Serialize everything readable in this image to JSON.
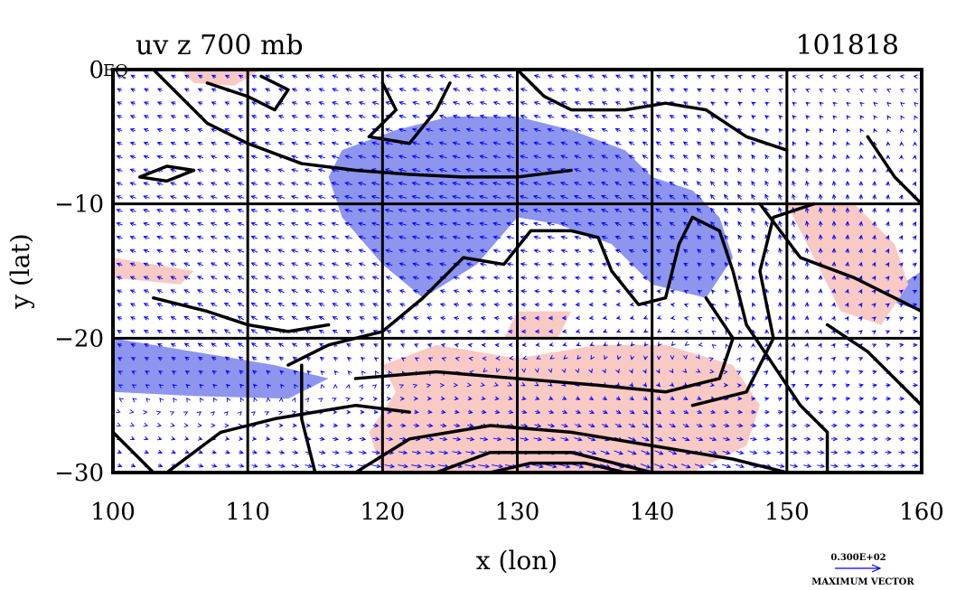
{
  "chart_data": {
    "type": "vector-contour-map",
    "title_left": "uv z 700 mb",
    "title_right": "101818",
    "xlabel": "x (lon)",
    "ylabel": "y (lat)",
    "xlim": [
      100,
      160
    ],
    "ylim": [
      -30,
      0
    ],
    "xticks": [
      "100",
      "110",
      "120",
      "130",
      "140",
      "150",
      "160"
    ],
    "yticks": [
      "0",
      "−10",
      "−20",
      "−30"
    ],
    "xtick_values": [
      100,
      110,
      120,
      130,
      140,
      150,
      160
    ],
    "ytick_values": [
      0,
      -10,
      -20,
      -30
    ],
    "corner_label": "EQ",
    "grid": true,
    "legend": {
      "value": "0.300E+02",
      "label": "MAXIMUM VECTOR"
    },
    "colors": {
      "positive": "#f9c9c4",
      "negative": "#8d95ef",
      "vector": "#0000ff",
      "contour": "#000000"
    },
    "shaded_regions": [
      {
        "sign": "negative",
        "points": [
          [
            117,
            -6
          ],
          [
            121,
            -4.5
          ],
          [
            125,
            -3.5
          ],
          [
            130,
            -3.5
          ],
          [
            134,
            -4.5
          ],
          [
            138,
            -6
          ],
          [
            140,
            -8
          ],
          [
            143,
            -9
          ],
          [
            145,
            -11
          ],
          [
            146,
            -14
          ],
          [
            144,
            -17
          ],
          [
            140,
            -16
          ],
          [
            137,
            -13
          ],
          [
            133,
            -11.5
          ],
          [
            130,
            -11
          ],
          [
            127,
            -14.5
          ],
          [
            123,
            -17
          ],
          [
            120,
            -14.5
          ],
          [
            117,
            -11
          ],
          [
            116,
            -8
          ]
        ]
      },
      {
        "sign": "negative",
        "points": [
          [
            100,
            -20
          ],
          [
            106,
            -21
          ],
          [
            112,
            -22
          ],
          [
            116,
            -23
          ],
          [
            113,
            -24.5
          ],
          [
            106,
            -24.3
          ],
          [
            100,
            -24
          ]
        ]
      },
      {
        "sign": "negative",
        "points": [
          [
            157,
            -17
          ],
          [
            160,
            -15
          ],
          [
            160,
            -18
          ]
        ]
      },
      {
        "sign": "positive",
        "points": [
          [
            120,
            -22
          ],
          [
            124,
            -20.5
          ],
          [
            130,
            -21.5
          ],
          [
            136,
            -20.5
          ],
          [
            141,
            -20.5
          ],
          [
            146,
            -22
          ],
          [
            148,
            -25
          ],
          [
            147,
            -28
          ],
          [
            143,
            -30
          ],
          [
            120,
            -30
          ],
          [
            119,
            -27
          ],
          [
            121,
            -24
          ]
        ]
      },
      {
        "sign": "positive",
        "points": [
          [
            150,
            -10
          ],
          [
            155,
            -10
          ],
          [
            158,
            -13
          ],
          [
            159,
            -16
          ],
          [
            157,
            -19
          ],
          [
            154,
            -18
          ],
          [
            152,
            -14
          ]
        ]
      },
      {
        "sign": "positive",
        "points": [
          [
            105,
            0
          ],
          [
            111,
            0
          ],
          [
            109,
            -1.2
          ],
          [
            106,
            -1
          ]
        ]
      },
      {
        "sign": "positive",
        "points": [
          [
            100,
            -14
          ],
          [
            106,
            -15
          ],
          [
            105,
            -16
          ],
          [
            100,
            -15.5
          ]
        ]
      },
      {
        "sign": "positive",
        "points": [
          [
            130,
            -18
          ],
          [
            134,
            -18
          ],
          [
            133,
            -20
          ],
          [
            129,
            -20
          ]
        ]
      }
    ],
    "contours": [
      [
        [
          102,
          -8
        ],
        [
          104,
          -8.3
        ],
        [
          106,
          -7.5
        ],
        [
          104,
          -7.2
        ],
        [
          102,
          -8
        ]
      ],
      [
        [
          103,
          0
        ],
        [
          105,
          -2
        ],
        [
          107,
          -4
        ],
        [
          110,
          -5.5
        ],
        [
          114,
          -7
        ],
        [
          118,
          -7.5
        ],
        [
          122,
          -7.8
        ],
        [
          126,
          -8
        ],
        [
          130,
          -8
        ],
        [
          134,
          -7.5
        ]
      ],
      [
        [
          107,
          -1
        ],
        [
          110,
          -2
        ],
        [
          112,
          -3
        ],
        [
          113,
          -1.5
        ],
        [
          111,
          -0.5
        ]
      ],
      [
        [
          120,
          -1
        ],
        [
          121,
          -3
        ],
        [
          119,
          -5
        ],
        [
          122,
          -5.5
        ],
        [
          124,
          -3
        ],
        [
          125,
          -1
        ]
      ],
      [
        [
          130,
          0
        ],
        [
          132,
          -2
        ],
        [
          134,
          -3
        ],
        [
          138,
          -3
        ],
        [
          141,
          -2.5
        ],
        [
          144,
          -3
        ],
        [
          147,
          -5
        ],
        [
          150,
          -6
        ]
      ],
      [
        [
          143,
          -11
        ],
        [
          145,
          -12
        ],
        [
          146,
          -15
        ],
        [
          147,
          -19
        ],
        [
          149,
          -22
        ],
        [
          151,
          -25
        ],
        [
          153,
          -27
        ],
        [
          153,
          -30
        ]
      ],
      [
        [
          114,
          -22
        ],
        [
          114,
          -26
        ],
        [
          115,
          -30
        ]
      ],
      [
        [
          113,
          -22
        ],
        [
          116,
          -20.5
        ],
        [
          120,
          -19.5
        ],
        [
          123,
          -17
        ],
        [
          126,
          -14
        ],
        [
          129,
          -14.5
        ],
        [
          131,
          -12
        ],
        [
          134,
          -12
        ],
        [
          136,
          -12.5
        ],
        [
          137,
          -15
        ],
        [
          139,
          -17.5
        ],
        [
          141,
          -17
        ],
        [
          142,
          -13
        ],
        [
          143,
          -11
        ]
      ],
      [
        [
          103,
          -17
        ],
        [
          107,
          -18
        ],
        [
          110,
          -19
        ],
        [
          113,
          -19.5
        ],
        [
          116,
          -19
        ]
      ],
      [
        [
          104,
          -30
        ],
        [
          108,
          -27
        ],
        [
          112,
          -26
        ],
        [
          118,
          -25
        ],
        [
          122,
          -25.5
        ]
      ],
      [
        [
          118,
          -30
        ],
        [
          122,
          -27.5
        ],
        [
          128,
          -26.5
        ],
        [
          134,
          -27
        ],
        [
          140,
          -28
        ],
        [
          146,
          -29
        ],
        [
          150,
          -30
        ]
      ],
      [
        [
          124,
          -30
        ],
        [
          128,
          -28.5
        ],
        [
          134,
          -28.5
        ],
        [
          140,
          -30
        ]
      ],
      [
        [
          128,
          -30
        ],
        [
          131,
          -29.3
        ],
        [
          135,
          -29.3
        ],
        [
          138,
          -30
        ]
      ],
      [
        [
          118,
          -23
        ],
        [
          124,
          -22.5
        ],
        [
          130,
          -23
        ],
        [
          136,
          -23.5
        ],
        [
          141,
          -24
        ],
        [
          145,
          -23
        ],
        [
          146,
          -20
        ],
        [
          144,
          -17
        ]
      ],
      [
        [
          143,
          -25
        ],
        [
          147,
          -24
        ],
        [
          149,
          -20
        ],
        [
          148,
          -15
        ],
        [
          149,
          -11
        ],
        [
          152,
          -10
        ]
      ],
      [
        [
          148,
          -10
        ],
        [
          151,
          -14
        ],
        [
          155,
          -15.5
        ],
        [
          158,
          -17
        ],
        [
          160,
          -18
        ]
      ],
      [
        [
          153,
          -19
        ],
        [
          156,
          -21
        ],
        [
          159,
          -24
        ],
        [
          160,
          -25
        ]
      ],
      [
        [
          156,
          -5
        ],
        [
          158,
          -8
        ],
        [
          160,
          -10
        ]
      ],
      [
        [
          100,
          -27
        ],
        [
          102,
          -29
        ],
        [
          103,
          -30
        ]
      ]
    ],
    "vector_field": {
      "lon": [
        100,
        110,
        120,
        130,
        140,
        150,
        160
      ],
      "lat": [
        0,
        -10,
        -20,
        -30
      ],
      "u": [
        [
          -2,
          -2,
          -3,
          -3,
          -2,
          -1,
          -1
        ],
        [
          -3,
          -3,
          -4,
          -4,
          -3,
          -1,
          1
        ],
        [
          -2,
          -3,
          -2,
          -2,
          -1,
          0,
          2
        ],
        [
          2,
          3,
          5,
          6,
          5,
          4,
          3
        ]
      ],
      "v": [
        [
          1,
          1,
          1,
          1,
          1,
          0,
          0
        ],
        [
          1,
          1,
          1,
          1,
          2,
          3,
          2
        ],
        [
          1,
          2,
          1,
          0,
          -1,
          2,
          0
        ],
        [
          -1,
          -1,
          -1,
          -1,
          -2,
          -1,
          0
        ]
      ]
    }
  }
}
